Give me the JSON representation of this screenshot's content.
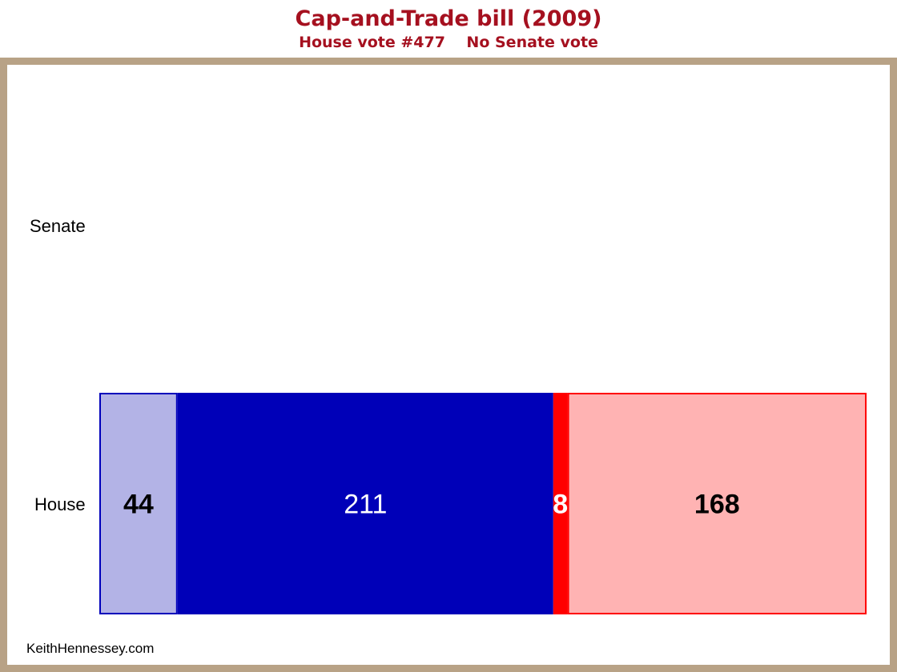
{
  "chart_data": {
    "type": "bar",
    "orientation": "horizontal",
    "stacked": true,
    "title": "Cap-and-Trade bill (2009)",
    "subtitle": "House vote #477    No Senate vote",
    "categories": [
      "Senate",
      "House"
    ],
    "series": [
      {
        "values": [
          null,
          44
        ],
        "fill": "#b3b3e6",
        "stroke": "#0000bb",
        "label_color": "#000000",
        "label_weight": "bold"
      },
      {
        "values": [
          null,
          211
        ],
        "fill": "#0000b8",
        "stroke": "#0000b8",
        "label_color": "#ffffff",
        "label_weight": "normal"
      },
      {
        "values": [
          null,
          8
        ],
        "fill": "#ff0000",
        "stroke": "#ff0000",
        "label_color": "#ffffff",
        "label_weight": "bold"
      },
      {
        "values": [
          null,
          168
        ],
        "fill": "#ffb3b3",
        "stroke": "#ff0000",
        "label_color": "#000000",
        "label_weight": "bold"
      }
    ],
    "total_house": 431,
    "grid": false,
    "legend": "none"
  },
  "colors": {
    "title": "#a5101f",
    "frame": "#b8a286"
  },
  "credit": "KeithHennessey.com"
}
